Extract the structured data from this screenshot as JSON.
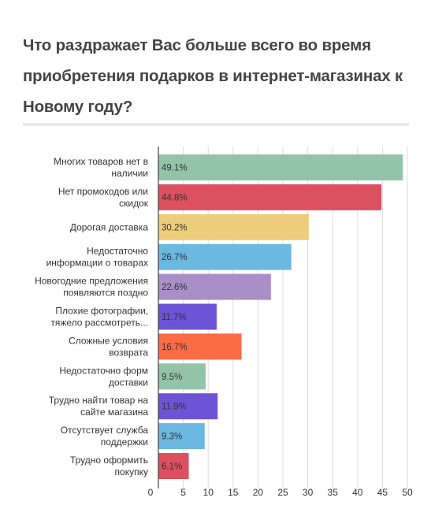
{
  "title": "Что раздражает Вас больше всего во время приобретения подарков в интернет-магазинах к Новому году?",
  "chart_data": {
    "type": "bar",
    "orientation": "horizontal",
    "title": "Что раздражает Вас больше всего во время приобретения подарков в интернет-магазинах к Новому году?",
    "categories": [
      [
        "Многих товаров нет в",
        "наличии"
      ],
      [
        "Нет промокодов или",
        "скидок"
      ],
      [
        "Дорогая доставка"
      ],
      [
        "Недостаточно",
        "информации о товарах"
      ],
      [
        "Новогодние предложения",
        "появляются поздно"
      ],
      [
        "Плохие фотографии,",
        "тяжело рассмотреть..."
      ],
      [
        "Сложные условия",
        "возврата"
      ],
      [
        "Недостаточно форм",
        "доставки"
      ],
      [
        "Трудно найти товар на",
        "сайте магазина"
      ],
      [
        "Отсутствует служба",
        "поддержки"
      ],
      [
        "Трудно оформить",
        "покупку"
      ]
    ],
    "values": [
      49.1,
      44.8,
      30.2,
      26.7,
      22.6,
      11.7,
      16.7,
      9.5,
      11.9,
      9.3,
      6.1
    ],
    "value_labels": [
      "49.1%",
      "44.8%",
      "30.2%",
      "26.7%",
      "22.6%",
      "11.7%",
      "16.7%",
      "9.5%",
      "11.9%",
      "9.3%",
      "6.1%"
    ],
    "colors": [
      "#93c4a8",
      "#dc5060",
      "#eecd7a",
      "#6bb8e0",
      "#a98fc6",
      "#6d54d6",
      "#fb6b45",
      "#93c4a8",
      "#6d54d6",
      "#6bb8e0",
      "#dc5060"
    ],
    "xticks": [
      0,
      5,
      10,
      15,
      20,
      25,
      30,
      35,
      40,
      45,
      50
    ],
    "xlim": [
      0,
      50
    ],
    "grid": true,
    "xlabel": "",
    "ylabel": ""
  }
}
